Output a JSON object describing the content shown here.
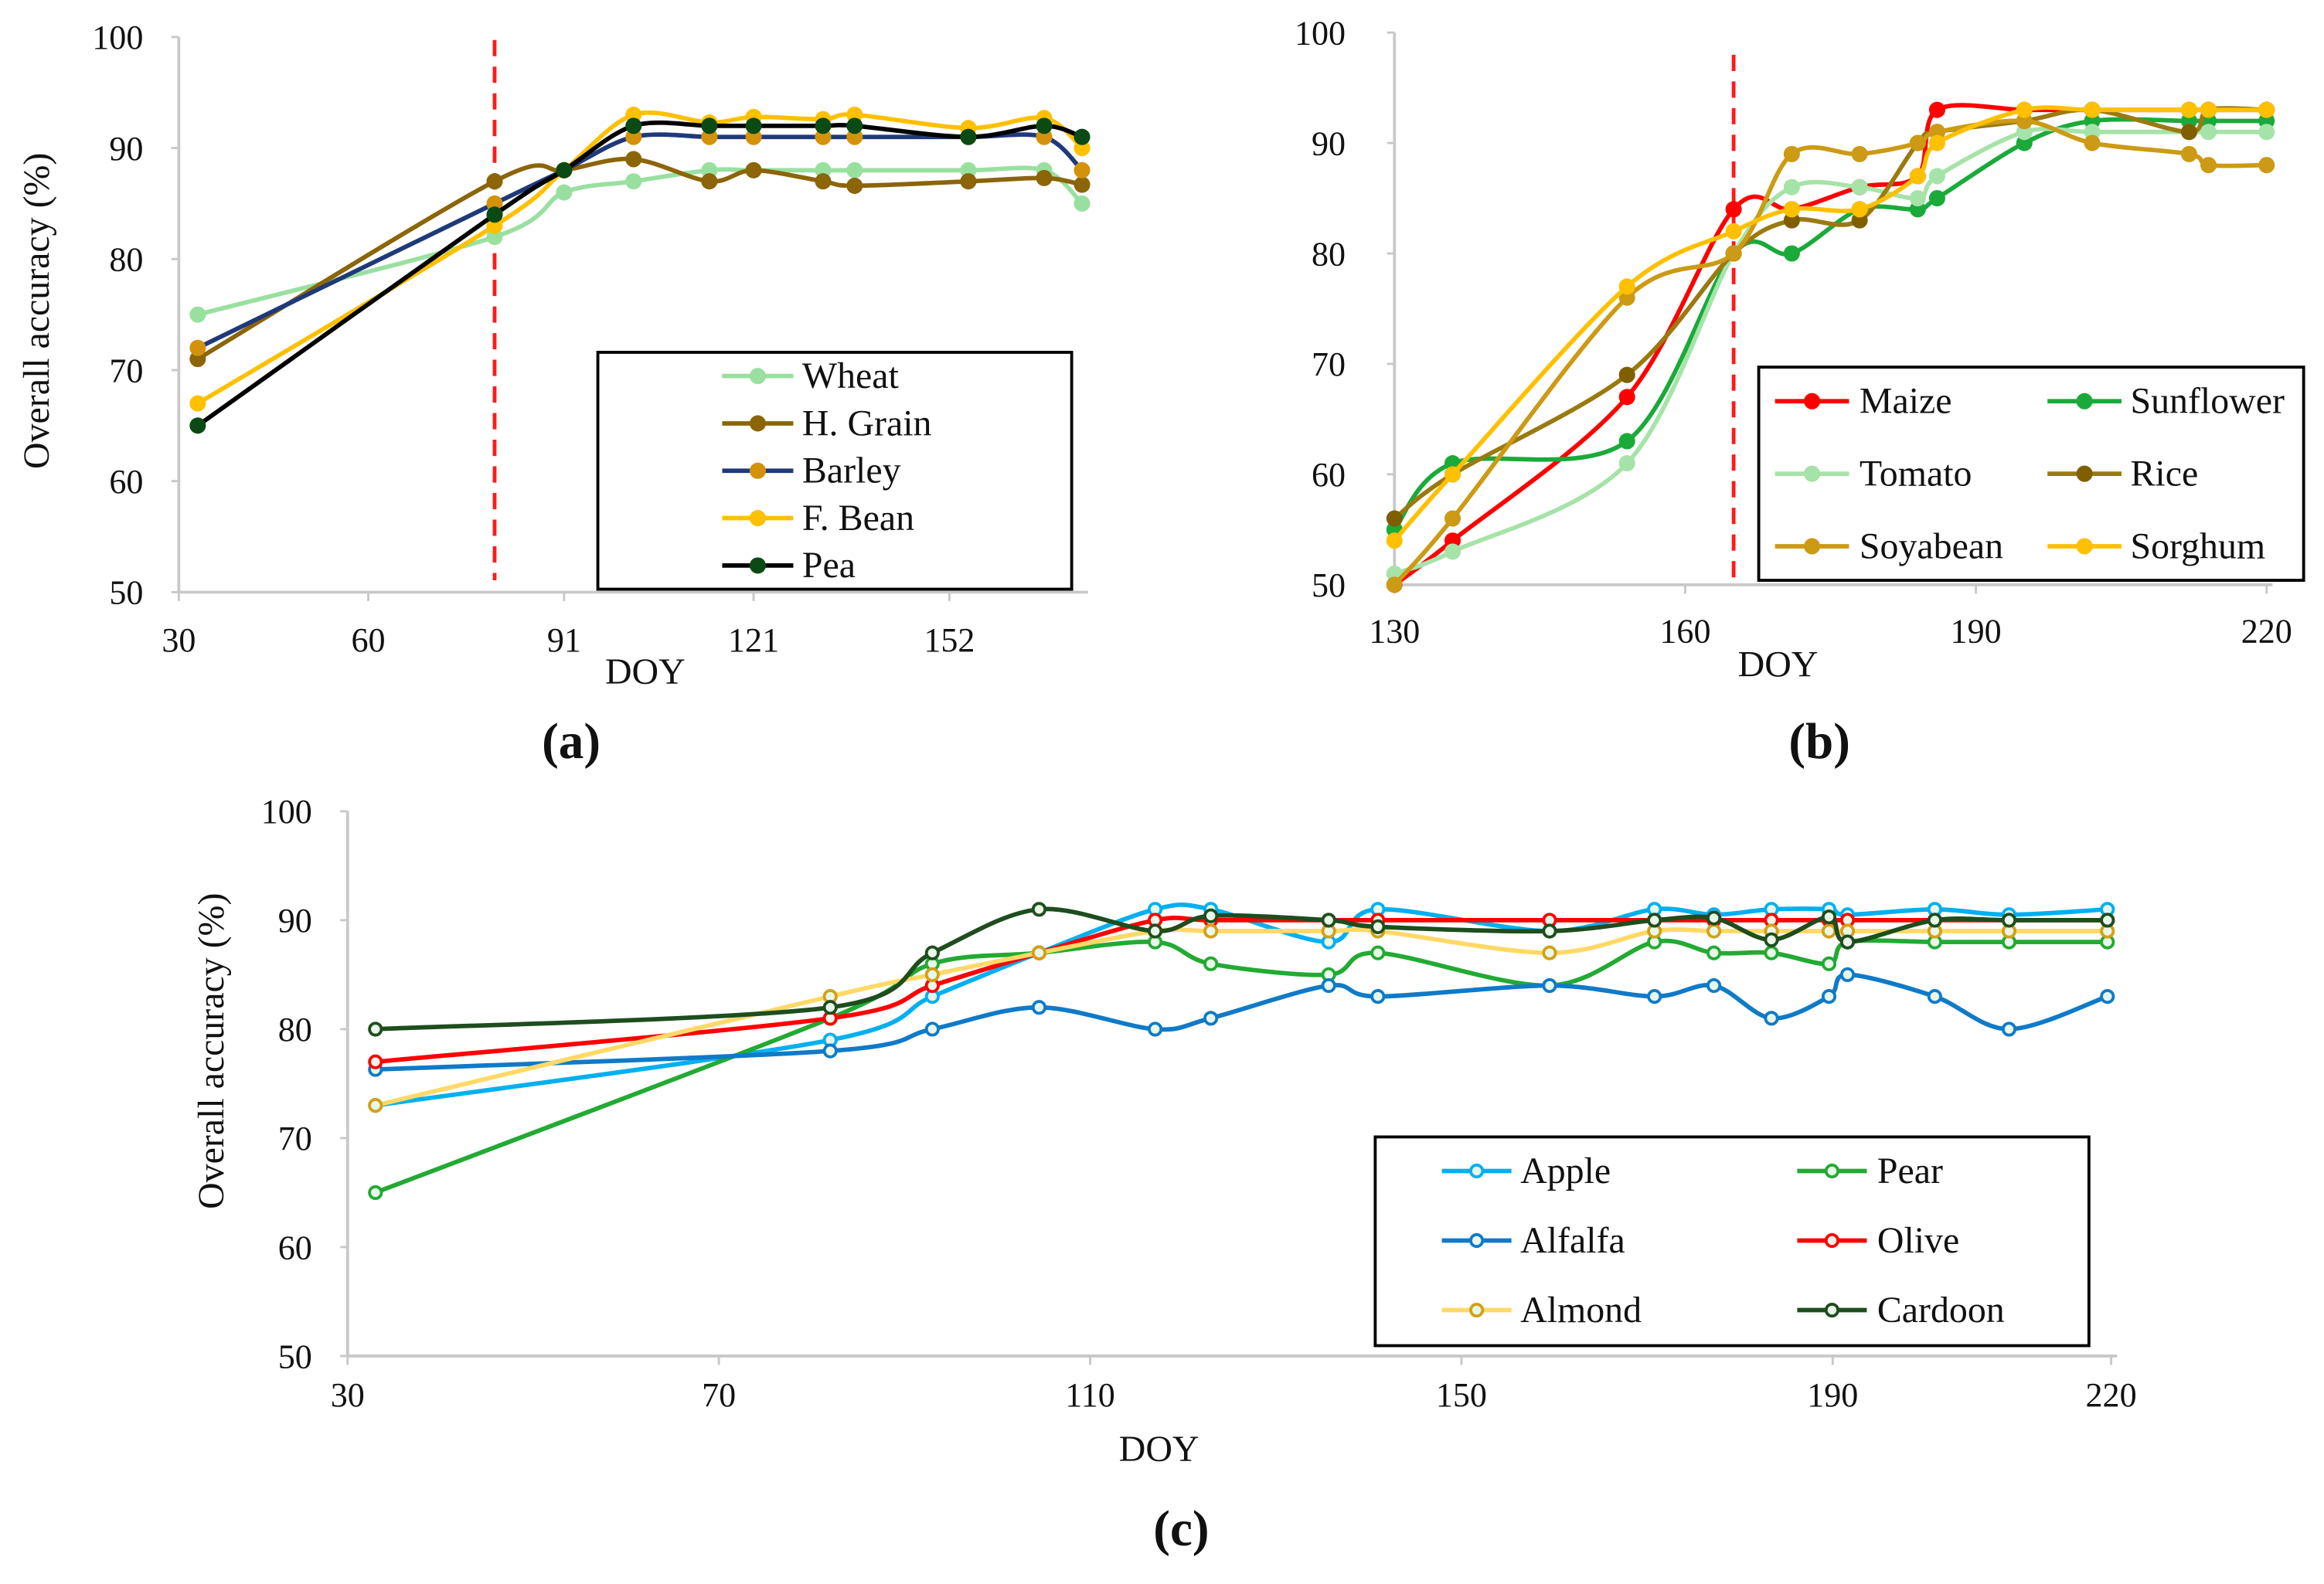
{
  "chart_data": [
    {
      "type": "line",
      "panel_label": "(a)",
      "xlabel": "DOY",
      "ylabel": "Overall accuracy (%)",
      "xlim": [
        30,
        173
      ],
      "ylim": [
        50,
        100
      ],
      "xticks": [
        30,
        60,
        91,
        121,
        152
      ],
      "yticks": [
        50,
        60,
        70,
        80,
        90,
        100
      ],
      "reference_line_doy": 80,
      "legend_position": "bottom-right",
      "x": [
        33,
        80,
        91,
        102,
        114,
        121,
        132,
        137,
        155,
        167,
        173
      ],
      "series": [
        {
          "name": "Wheat",
          "line": "#99e0a0",
          "marker": "#99e0a0",
          "values": [
            75,
            82,
            86,
            87,
            88,
            88,
            88,
            88,
            88,
            88,
            85
          ]
        },
        {
          "name": "H. Grain",
          "line": "#8b6508",
          "marker": "#8b6508",
          "values": [
            71,
            87,
            88,
            89,
            87,
            88,
            87,
            86.6,
            87,
            87.3,
            86.7
          ]
        },
        {
          "name": "Barley",
          "line": "#1f3a7a",
          "marker": "#d4920b",
          "values": [
            72,
            85,
            88,
            91,
            91,
            91,
            91,
            91,
            91,
            91,
            88
          ]
        },
        {
          "name": "F. Bean",
          "line": "#ffc000",
          "marker": "#ffc000",
          "values": [
            67,
            83,
            88,
            93,
            92.3,
            92.8,
            92.6,
            93,
            91.8,
            92.7,
            90
          ]
        },
        {
          "name": "Pea",
          "line": "#000000",
          "marker": "#0b4a14",
          "values": [
            65,
            84,
            88,
            92,
            92,
            92,
            92,
            92,
            91,
            92,
            91
          ]
        }
      ]
    },
    {
      "type": "line",
      "panel_label": "(b)",
      "xlabel": "DOY",
      "ylabel": "",
      "xlim": [
        130,
        220
      ],
      "ylim": [
        50,
        100
      ],
      "xticks": [
        130,
        160,
        190,
        220
      ],
      "yticks": [
        50,
        60,
        70,
        80,
        90,
        100
      ],
      "reference_line_doy": 165,
      "legend_position": "bottom-right",
      "x": [
        130,
        136,
        154,
        165,
        171,
        178,
        184,
        186,
        195,
        202,
        212,
        214,
        220
      ],
      "series": [
        {
          "name": "Maize",
          "line": "#ff0000",
          "marker": "#ff0000",
          "values": [
            50,
            54,
            67,
            84,
            84,
            86,
            87,
            93,
            93,
            93,
            93,
            93,
            93
          ]
        },
        {
          "name": "Sunflower",
          "line": "#1aaa3a",
          "marker": "#1aaa3a",
          "values": [
            55,
            61,
            63,
            80,
            80,
            84,
            84,
            85,
            90,
            92,
            92,
            92,
            92
          ]
        },
        {
          "name": "Tomato",
          "line": "#a6e3a8",
          "marker": "#a6e3a8",
          "values": [
            51,
            53,
            61,
            80,
            86,
            86,
            85,
            87,
            91,
            91,
            91,
            91,
            91
          ]
        },
        {
          "name": "Rice",
          "line": "#9a7a10",
          "marker": "#7f5f00",
          "values": [
            56,
            60,
            69,
            80,
            83,
            83,
            90,
            91,
            92,
            93,
            91,
            93,
            93
          ]
        },
        {
          "name": "Soyabean",
          "line": "#cc9a14",
          "marker": "#cc9a14",
          "values": [
            50,
            56,
            76,
            80,
            89,
            89,
            90,
            91,
            92,
            90,
            89,
            88,
            88
          ]
        },
        {
          "name": "Sorghum",
          "line": "#ffc000",
          "marker": "#ffc000",
          "values": [
            54,
            60,
            77,
            82,
            84,
            84,
            87,
            90,
            93,
            93,
            93,
            93,
            93
          ]
        }
      ]
    },
    {
      "type": "line",
      "panel_label": "(c)",
      "xlabel": "DOY",
      "ylabel": "Overall accuracy (%)",
      "xlim": [
        30,
        220
      ],
      "ylim": [
        50,
        100
      ],
      "xticks": [
        30,
        70,
        110,
        150,
        190,
        220
      ],
      "yticks": [
        50,
        60,
        70,
        80,
        90,
        100
      ],
      "legend_position": "bottom-right",
      "x": [
        33,
        82,
        93,
        104.5,
        117,
        123,
        135.7,
        141,
        159.5,
        170.8,
        177.2,
        183.4,
        189.6,
        191.6,
        201,
        209,
        219.6
      ],
      "series": [
        {
          "name": "Apple",
          "line": "#00b0f0",
          "marker": "#00b0f0",
          "values": [
            73,
            79,
            83,
            87,
            91,
            91,
            88,
            91,
            89,
            91,
            90.5,
            91,
            91,
            90.5,
            91,
            90.5,
            91
          ]
        },
        {
          "name": "Pear",
          "line": "#22aa33",
          "marker": "#22aa33",
          "values": [
            65,
            81,
            86,
            87,
            88,
            86,
            85,
            87,
            84,
            88,
            87,
            87,
            86,
            88,
            88,
            88,
            88
          ]
        },
        {
          "name": "Alfalfa",
          "line": "#0f7ac8",
          "marker": "#0f7ac8",
          "values": [
            76.3,
            78,
            80,
            82,
            80,
            81,
            84,
            83,
            84,
            83,
            84,
            81,
            83,
            85,
            83,
            80,
            83
          ]
        },
        {
          "name": "Olive",
          "line": "#ff0000",
          "marker": "#ff0000",
          "values": [
            77,
            81,
            84,
            87,
            90,
            90,
            90,
            90,
            90,
            90,
            90,
            90,
            90,
            90,
            90,
            90,
            90
          ]
        },
        {
          "name": "Almond",
          "line": "#ffd966",
          "marker": "#d4a017",
          "values": [
            73,
            83,
            85,
            87,
            89,
            89,
            89,
            89,
            87,
            89,
            89,
            89,
            89,
            89,
            89,
            89,
            89
          ]
        },
        {
          "name": "Cardoon",
          "line": "#1e4d1e",
          "marker": "#1e4d1e",
          "values": [
            80,
            82,
            87,
            91,
            89,
            90.4,
            90,
            89.4,
            89,
            90,
            90.2,
            88.2,
            90.3,
            88,
            90,
            90,
            90
          ]
        }
      ]
    }
  ]
}
